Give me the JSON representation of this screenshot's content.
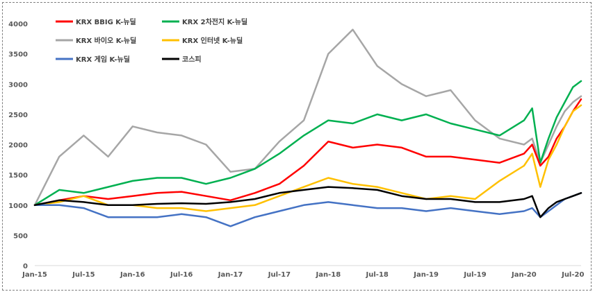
{
  "chart_data": {
    "type": "line",
    "title": "",
    "xlabel": "",
    "ylabel": "",
    "ylim": [
      0,
      4000
    ],
    "yticks": [
      0,
      500,
      1000,
      1500,
      2000,
      2500,
      3000,
      3500,
      4000
    ],
    "xlim": [
      "2015-01",
      "2020-08"
    ],
    "xtick_labels": [
      "Jan-15",
      "Jul-15",
      "Jan-16",
      "Jul-16",
      "Jan-17",
      "Jul-17",
      "Jan-18",
      "Jul-18",
      "Jan-19",
      "Jul-19",
      "Jan-20",
      "Jul-20"
    ],
    "grid": false,
    "legend": "top-left",
    "x": [
      "2015-01",
      "2015-04",
      "2015-07",
      "2015-10",
      "2016-01",
      "2016-04",
      "2016-07",
      "2016-10",
      "2017-01",
      "2017-04",
      "2017-07",
      "2017-10",
      "2018-01",
      "2018-04",
      "2018-07",
      "2018-10",
      "2019-01",
      "2019-04",
      "2019-07",
      "2019-10",
      "2020-01",
      "2020-02",
      "2020-03",
      "2020-04",
      "2020-05",
      "2020-06",
      "2020-07",
      "2020-08"
    ],
    "series": [
      {
        "name": "KRX BBIG K-뉴딜",
        "color": "#ff0000",
        "values": [
          1000,
          1080,
          1150,
          1100,
          1150,
          1200,
          1220,
          1150,
          1080,
          1200,
          1350,
          1650,
          2050,
          1950,
          2000,
          1950,
          1800,
          1800,
          1750,
          1700,
          1850,
          2000,
          1650,
          1800,
          2100,
          2300,
          2550,
          2750
        ]
      },
      {
        "name": "KRX 2차전지 K-뉴딜",
        "color": "#00b050",
        "values": [
          1000,
          1250,
          1200,
          1300,
          1400,
          1450,
          1450,
          1350,
          1450,
          1600,
          1850,
          2150,
          2400,
          2350,
          2500,
          2400,
          2500,
          2350,
          2250,
          2150,
          2400,
          2600,
          1700,
          2100,
          2450,
          2700,
          2950,
          3050
        ]
      },
      {
        "name": "KRX 바이오 K-뉴딜",
        "color": "#a6a6a6",
        "values": [
          1000,
          1800,
          2150,
          1800,
          2300,
          2200,
          2150,
          2000,
          1550,
          1600,
          2050,
          2400,
          3500,
          3900,
          3300,
          3000,
          2800,
          2900,
          2400,
          2100,
          2000,
          2100,
          1700,
          2000,
          2300,
          2550,
          2700,
          2800
        ]
      },
      {
        "name": "KRX 인터넷 K-뉴딜",
        "color": "#ffc000",
        "values": [
          1000,
          1050,
          1150,
          1000,
          1000,
          950,
          950,
          900,
          950,
          1000,
          1150,
          1300,
          1450,
          1350,
          1300,
          1200,
          1100,
          1150,
          1100,
          1400,
          1650,
          1850,
          1300,
          1750,
          2000,
          2300,
          2550,
          2650
        ]
      },
      {
        "name": "KRX 게임 K-뉴딜",
        "color": "#4472c4",
        "values": [
          1000,
          1000,
          950,
          800,
          800,
          800,
          850,
          800,
          650,
          800,
          900,
          1000,
          1050,
          1000,
          950,
          950,
          900,
          950,
          900,
          850,
          900,
          950,
          800,
          900,
          1000,
          1100,
          1150,
          1200
        ]
      },
      {
        "name": "코스피",
        "color": "#000000",
        "values": [
          1000,
          1080,
          1050,
          1000,
          1000,
          1020,
          1030,
          1020,
          1050,
          1100,
          1200,
          1250,
          1300,
          1280,
          1250,
          1150,
          1100,
          1100,
          1050,
          1050,
          1100,
          1150,
          800,
          950,
          1050,
          1100,
          1150,
          1200
        ]
      }
    ]
  }
}
